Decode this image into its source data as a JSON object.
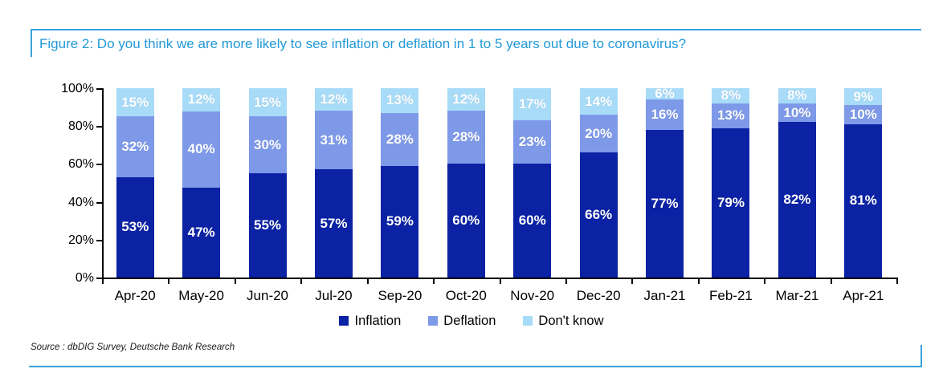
{
  "figure": {
    "title": "Figure 2: Do you think we are more likely to see inflation or deflation in 1 to 5 years out due to coronavirus?",
    "source": "Source : dbDIG Survey, Deutsche Bank Research"
  },
  "chart_data": {
    "type": "bar",
    "stacked": true,
    "title": "Figure 2: Do you think we are more likely to see inflation or deflation in 1 to 5 years out due to coronavirus?",
    "categories": [
      "Apr-20",
      "May-20",
      "Jun-20",
      "Jul-20",
      "Sep-20",
      "Oct-20",
      "Nov-20",
      "Dec-20",
      "Jan-21",
      "Feb-21",
      "Mar-21",
      "Apr-21"
    ],
    "series": [
      {
        "name": "Inflation",
        "color": "#0b22a4",
        "values": [
          53,
          47,
          55,
          57,
          59,
          60,
          60,
          66,
          77,
          79,
          82,
          81
        ]
      },
      {
        "name": "Deflation",
        "color": "#7d99e8",
        "values": [
          32,
          40,
          30,
          31,
          28,
          28,
          23,
          20,
          16,
          13,
          10,
          10
        ]
      },
      {
        "name": "Don't know",
        "color": "#a7dbf8",
        "values": [
          15,
          12,
          15,
          12,
          13,
          12,
          17,
          14,
          6,
          8,
          8,
          9
        ]
      }
    ],
    "xlabel": "",
    "ylabel": "",
    "ylim": [
      0,
      100
    ],
    "yticks": [
      "0%",
      "20%",
      "40%",
      "60%",
      "80%",
      "100%"
    ],
    "grid": false,
    "legend_position": "bottom",
    "bar_labels": "shown as white percent text centered in each segment"
  },
  "colors": {
    "accent_rule": "#3aa2da",
    "title_text": "#2199d8",
    "axis": "#000000",
    "bar_label_text": "#ffffff"
  }
}
